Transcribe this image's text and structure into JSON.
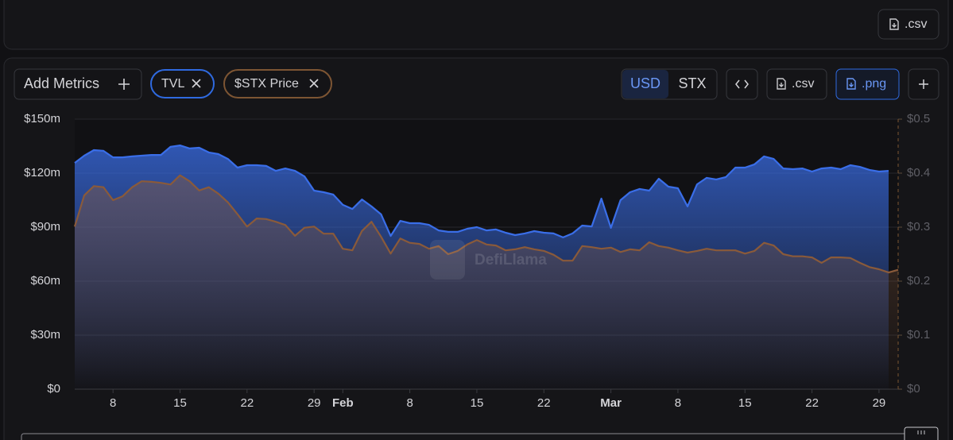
{
  "top_bar": {
    "csv_button": ".csv"
  },
  "toolbar": {
    "add_metrics": "Add Metrics",
    "metric_tvl": "TVL",
    "metric_price": "$STX Price",
    "currency_usd": "USD",
    "currency_stx": "STX",
    "csv_button": ".csv",
    "png_button": ".png"
  },
  "watermark": "DefiLlama",
  "chart_data": {
    "type": "area",
    "categories": [
      null,
      null,
      null,
      null,
      "8",
      null,
      null,
      null,
      null,
      null,
      null,
      "15",
      null,
      null,
      null,
      null,
      null,
      null,
      "22",
      null,
      null,
      null,
      null,
      null,
      null,
      "29",
      null,
      null,
      "Feb",
      null,
      null,
      null,
      null,
      null,
      null,
      "8",
      null,
      null,
      null,
      null,
      null,
      null,
      "15",
      null,
      null,
      null,
      null,
      null,
      null,
      "22",
      null,
      null,
      null,
      null,
      null,
      null,
      "Mar",
      null,
      null,
      null,
      null,
      null,
      null,
      "8",
      null,
      null,
      null,
      null,
      null,
      null,
      "15",
      null,
      null,
      null,
      null,
      null,
      null,
      "22",
      null,
      null,
      null,
      null,
      null,
      null,
      "29",
      null,
      null
    ],
    "series": [
      {
        "name": "TVL",
        "color": "#3a6ee8",
        "axis": "y",
        "values": [
          125.7,
          129.7,
          132.8,
          132.4,
          128.8,
          128.8,
          129.3,
          129.7,
          130.1,
          130.1,
          134.6,
          135.4,
          133.7,
          134.1,
          131.5,
          130.6,
          127.9,
          123.1,
          124.4,
          124.4,
          124,
          121.3,
          122.6,
          121.3,
          118.2,
          110.3,
          109.4,
          108.1,
          102.4,
          100.1,
          105.4,
          101.5,
          97.1,
          85.1,
          93.5,
          92.2,
          92.2,
          91.3,
          88.2,
          87.4,
          87.4,
          89.1,
          90,
          88.2,
          88.7,
          86.9,
          85.6,
          86.5,
          87.8,
          86.9,
          86.5,
          84.3,
          86.5,
          90.9,
          90.4,
          105.9,
          89.6,
          105,
          109.4,
          111.2,
          110.3,
          116.9,
          112.5,
          111.6,
          101.5,
          113.8,
          117.4,
          116.5,
          117.8,
          123.1,
          123.1,
          124.9,
          129.3,
          127.9,
          122.6,
          122.2,
          122.6,
          120.9,
          122.6,
          123.1,
          122.2,
          124.4,
          123.5,
          121.8,
          120.9,
          121.3,
          null
        ]
      },
      {
        "name": "$STX Price",
        "color": "#8a5a3a",
        "axis": "y2",
        "values": [
          0.301,
          0.359,
          0.376,
          0.374,
          0.35,
          0.357,
          0.374,
          0.385,
          0.384,
          0.382,
          0.379,
          0.396,
          0.385,
          0.368,
          0.374,
          0.362,
          0.346,
          0.324,
          0.301,
          0.316,
          0.315,
          0.31,
          0.304,
          0.284,
          0.299,
          0.301,
          0.288,
          0.288,
          0.26,
          0.257,
          0.293,
          0.31,
          0.282,
          0.251,
          0.279,
          0.271,
          0.269,
          0.26,
          0.265,
          0.25,
          0.256,
          0.268,
          0.276,
          0.268,
          0.266,
          0.257,
          0.259,
          0.263,
          0.259,
          0.256,
          0.249,
          0.238,
          0.238,
          0.265,
          0.263,
          0.26,
          0.262,
          0.254,
          0.259,
          0.257,
          0.272,
          0.265,
          0.262,
          0.257,
          0.253,
          0.256,
          0.26,
          0.257,
          0.257,
          0.257,
          0.251,
          0.256,
          0.271,
          0.266,
          0.25,
          0.246,
          0.246,
          0.244,
          0.234,
          0.244,
          0.244,
          0.243,
          0.234,
          0.226,
          0.222,
          0.216,
          0.221
        ]
      }
    ],
    "ylim": [
      0,
      150
    ],
    "yticks": [
      {
        "value": 0,
        "label": "$0"
      },
      {
        "value": 30,
        "label": "$30m"
      },
      {
        "value": 60,
        "label": "$60m"
      },
      {
        "value": 90,
        "label": "$90m"
      },
      {
        "value": 120,
        "label": "$120m"
      },
      {
        "value": 150,
        "label": "$150m"
      }
    ],
    "y2lim": [
      0,
      0.5
    ],
    "y2ticks": [
      {
        "value": 0,
        "label": "$0"
      },
      {
        "value": 0.1,
        "label": "$0.1"
      },
      {
        "value": 0.2,
        "label": "$0.2"
      },
      {
        "value": 0.3,
        "label": "$0.3"
      },
      {
        "value": 0.4,
        "label": "$0.4"
      },
      {
        "value": 0.5,
        "label": "$0.5"
      }
    ],
    "grid": true
  }
}
